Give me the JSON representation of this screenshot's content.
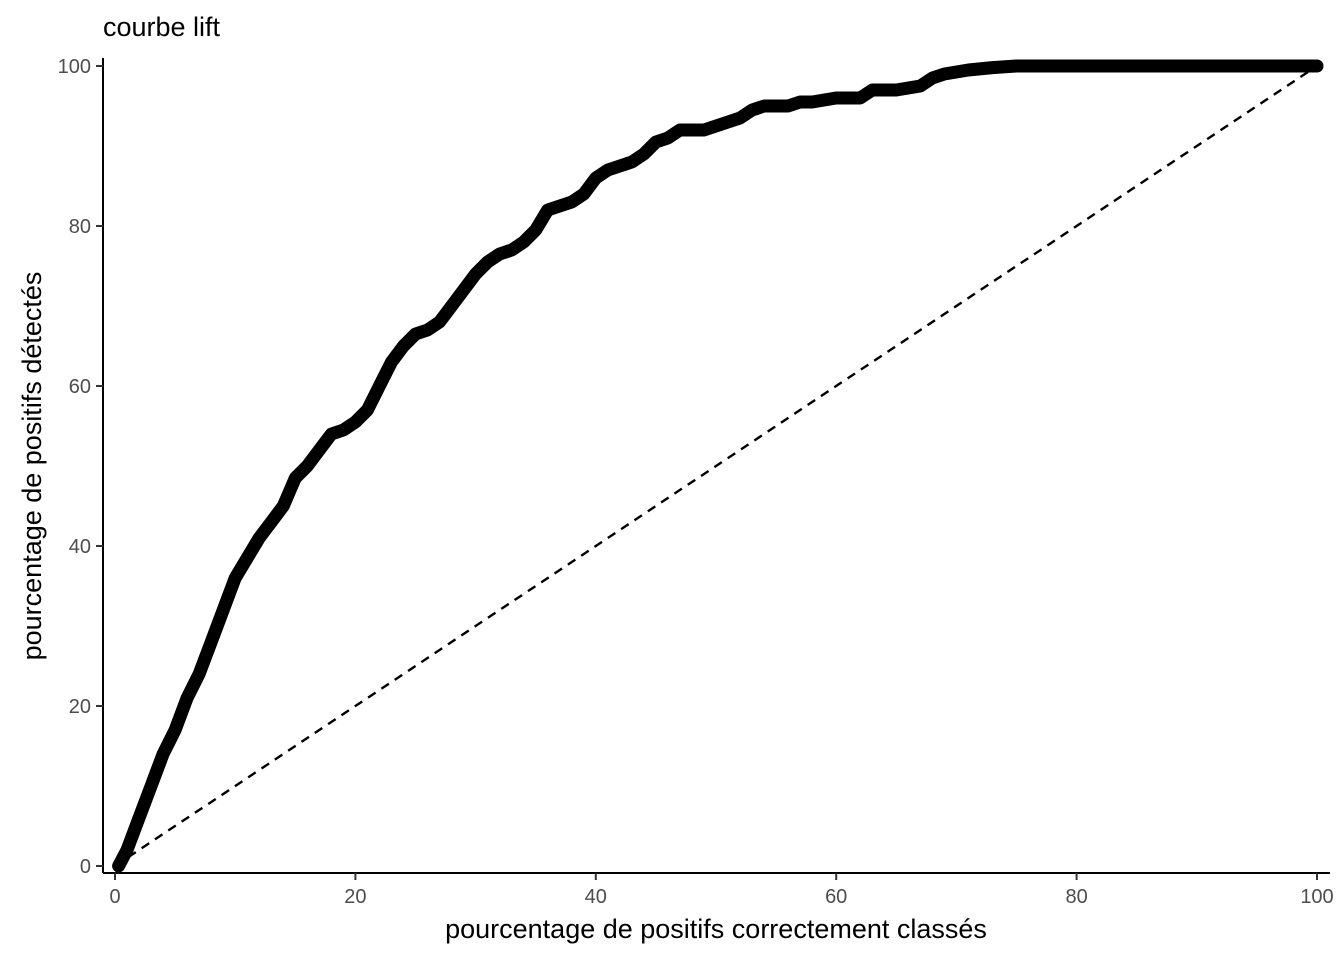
{
  "chart_data": {
    "type": "line",
    "title": "courbe lift",
    "xlabel": "pourcentage de positifs correctement classés",
    "ylabel": "pourcentage de positifs détectés",
    "xlim": [
      0,
      100
    ],
    "ylim": [
      0,
      100
    ],
    "x_ticks": [
      "0",
      "20",
      "40",
      "60",
      "80",
      "100"
    ],
    "y_ticks": [
      "0",
      "20",
      "40",
      "60",
      "80",
      "100"
    ],
    "grid": false,
    "series": [
      {
        "style": "thick-solid",
        "color": "#000000",
        "points": [
          [
            0.3,
            0
          ],
          [
            1,
            2
          ],
          [
            2,
            6
          ],
          [
            3,
            10
          ],
          [
            4,
            14
          ],
          [
            5,
            17
          ],
          [
            6,
            21
          ],
          [
            7,
            24
          ],
          [
            8,
            28
          ],
          [
            9,
            32
          ],
          [
            10,
            36
          ],
          [
            11,
            38.5
          ],
          [
            12,
            41
          ],
          [
            13,
            43
          ],
          [
            14,
            45
          ],
          [
            15,
            48.5
          ],
          [
            16,
            50
          ],
          [
            17,
            52
          ],
          [
            18,
            54
          ],
          [
            19,
            54.5
          ],
          [
            20,
            55.5
          ],
          [
            21,
            57
          ],
          [
            22,
            60
          ],
          [
            23,
            63
          ],
          [
            24,
            65
          ],
          [
            25,
            66.5
          ],
          [
            26,
            67
          ],
          [
            27,
            68
          ],
          [
            28,
            70
          ],
          [
            29,
            72
          ],
          [
            30,
            74
          ],
          [
            31,
            75.5
          ],
          [
            32,
            76.5
          ],
          [
            33,
            77
          ],
          [
            34,
            78
          ],
          [
            35,
            79.5
          ],
          [
            36,
            82
          ],
          [
            37,
            82.5
          ],
          [
            38,
            83
          ],
          [
            39,
            84
          ],
          [
            40,
            86
          ],
          [
            41,
            87
          ],
          [
            42,
            87.5
          ],
          [
            43,
            88
          ],
          [
            44,
            89
          ],
          [
            45,
            90.5
          ],
          [
            46,
            91
          ],
          [
            47,
            92
          ],
          [
            48,
            92
          ],
          [
            49,
            92
          ],
          [
            50,
            92.5
          ],
          [
            51,
            93
          ],
          [
            52,
            93.5
          ],
          [
            53,
            94.5
          ],
          [
            54,
            95
          ],
          [
            55,
            95
          ],
          [
            56,
            95
          ],
          [
            57,
            95.5
          ],
          [
            58,
            95.5
          ],
          [
            60,
            96
          ],
          [
            62,
            96
          ],
          [
            63,
            97
          ],
          [
            65,
            97
          ],
          [
            67,
            97.5
          ],
          [
            68,
            98.5
          ],
          [
            69,
            99
          ],
          [
            71,
            99.5
          ],
          [
            73,
            99.8
          ],
          [
            75,
            100
          ],
          [
            80,
            100
          ],
          [
            90,
            100
          ],
          [
            100,
            100
          ]
        ]
      },
      {
        "style": "dashed",
        "color": "#000000",
        "points": [
          [
            0,
            0
          ],
          [
            100,
            100
          ]
        ]
      }
    ]
  }
}
